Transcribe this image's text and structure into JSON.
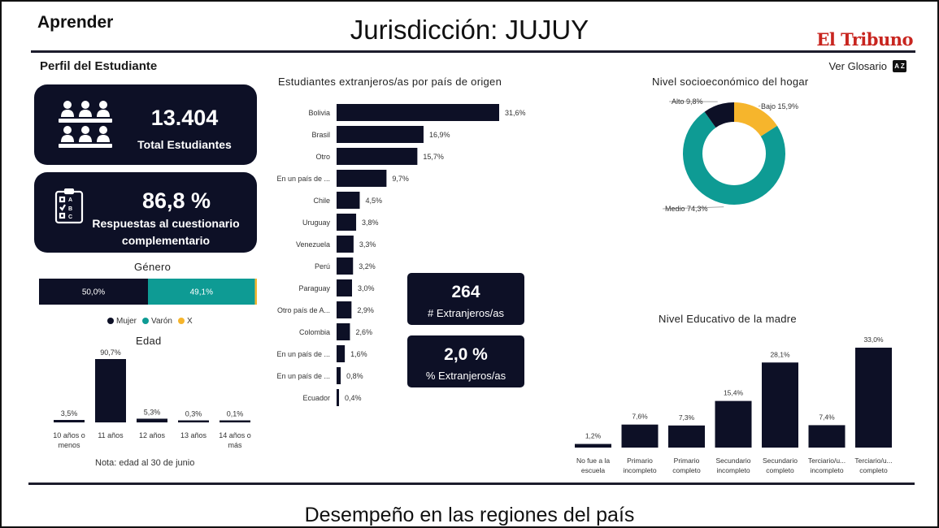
{
  "header": {
    "brand": "Aprender",
    "jurisdiction": "Jurisdicción: JUJUY",
    "logo": "El Tribuno"
  },
  "sidebar": {
    "section_title": "Perfil del Estudiante",
    "total_value": "13.404",
    "total_label": "Total Estudiantes",
    "resp_value": "86,8 %",
    "resp_label_1": "Respuestas al cuestionario",
    "resp_label_2": "complementario"
  },
  "glossary": {
    "label": "Ver Glosario",
    "icon_text": "A Z"
  },
  "kpis": {
    "foreign_count": "264",
    "foreign_count_label": "# Extranjeros/as",
    "foreign_pct": "2,0 %",
    "foreign_pct_label": "% Extranjeros/as"
  },
  "colors": {
    "navy": "#0d1026",
    "teal": "#0e9b94",
    "yellow": "#f6b52c",
    "red": "#c8251f"
  },
  "icons": {
    "students": "students-group-icon",
    "questionnaire": "questionnaire-checklist-icon",
    "glossary": "az-glossary-icon"
  },
  "footer": {
    "title": "Desempeño en las regiones del país"
  },
  "chart_data": [
    {
      "id": "genero",
      "type": "bar",
      "title": "Género",
      "orientation": "stacked-horizontal",
      "series": [
        {
          "name": "Mujer",
          "value": 50.0,
          "label": "50,0%",
          "color": "#0d1026"
        },
        {
          "name": "Varón",
          "value": 49.1,
          "label": "49,1%",
          "color": "#0e9b94"
        },
        {
          "name": "X",
          "value": 0.9,
          "label": "",
          "color": "#f6b52c"
        }
      ],
      "legend": "bottom"
    },
    {
      "id": "edad",
      "type": "bar",
      "title": "Edad",
      "categories": [
        "10 años o menos",
        "11 años",
        "12 años",
        "13 años",
        "14 años o más"
      ],
      "category_lines": [
        [
          "10 años o",
          "menos"
        ],
        [
          "11 años"
        ],
        [
          "12 años"
        ],
        [
          "13 años"
        ],
        [
          "14 años o",
          "más"
        ]
      ],
      "values": [
        3.5,
        90.7,
        5.3,
        0.3,
        0.1
      ],
      "labels": [
        "3,5%",
        "90,7%",
        "5,3%",
        "0,3%",
        "0,1%"
      ],
      "note": "Nota: edad al 30 de junio"
    },
    {
      "id": "extranjeros",
      "type": "bar",
      "orientation": "horizontal",
      "title": "Estudiantes extranjeros/as por país de origen",
      "categories": [
        "Bolivia",
        "Brasil",
        "Otro",
        "En un país de ...",
        "Chile",
        "Uruguay",
        "Venezuela",
        "Perú",
        "Paraguay",
        "Otro país de A...",
        "Colombia",
        "En un país de ...",
        "En un país de ...",
        "Ecuador"
      ],
      "values": [
        31.6,
        16.9,
        15.7,
        9.7,
        4.5,
        3.8,
        3.3,
        3.2,
        3.0,
        2.9,
        2.6,
        1.6,
        0.8,
        0.4
      ],
      "labels": [
        "31,6%",
        "16,9%",
        "15,7%",
        "9,7%",
        "4,5%",
        "3,8%",
        "3,3%",
        "3,2%",
        "3,0%",
        "2,9%",
        "2,6%",
        "1,6%",
        "0,8%",
        "0,4%"
      ]
    },
    {
      "id": "socioeconomico",
      "type": "pie",
      "title": "Nivel socioeconómico del hogar",
      "slices": [
        {
          "name": "Bajo",
          "value": 15.9,
          "label": "Bajo 15,9%",
          "color": "#f6b52c"
        },
        {
          "name": "Medio",
          "value": 74.3,
          "label": "Medio 74,3%",
          "color": "#0e9b94"
        },
        {
          "name": "Alto",
          "value": 9.8,
          "label": "Alto 9,8%",
          "color": "#0d1026"
        }
      ]
    },
    {
      "id": "madre",
      "type": "bar",
      "title": "Nivel Educativo de la madre",
      "categories": [
        "No fue a la escuela",
        "Primario incompleto",
        "Primario completo",
        "Secundario incompleto",
        "Secundario completo",
        "Terciario/u... incompleto",
        "Terciario/u... completo"
      ],
      "category_lines": [
        [
          "No fue a la",
          "escuela"
        ],
        [
          "Primario",
          "incompleto"
        ],
        [
          "Primario",
          "completo"
        ],
        [
          "Secundario",
          "incompleto"
        ],
        [
          "Secundario",
          "completo"
        ],
        [
          "Terciario/u...",
          "incompleto"
        ],
        [
          "Terciario/u...",
          "completo"
        ]
      ],
      "values": [
        1.2,
        7.6,
        7.3,
        15.4,
        28.1,
        7.4,
        33.0
      ],
      "labels": [
        "1,2%",
        "7,6%",
        "7,3%",
        "15,4%",
        "28,1%",
        "7,4%",
        "33,0%"
      ]
    }
  ]
}
